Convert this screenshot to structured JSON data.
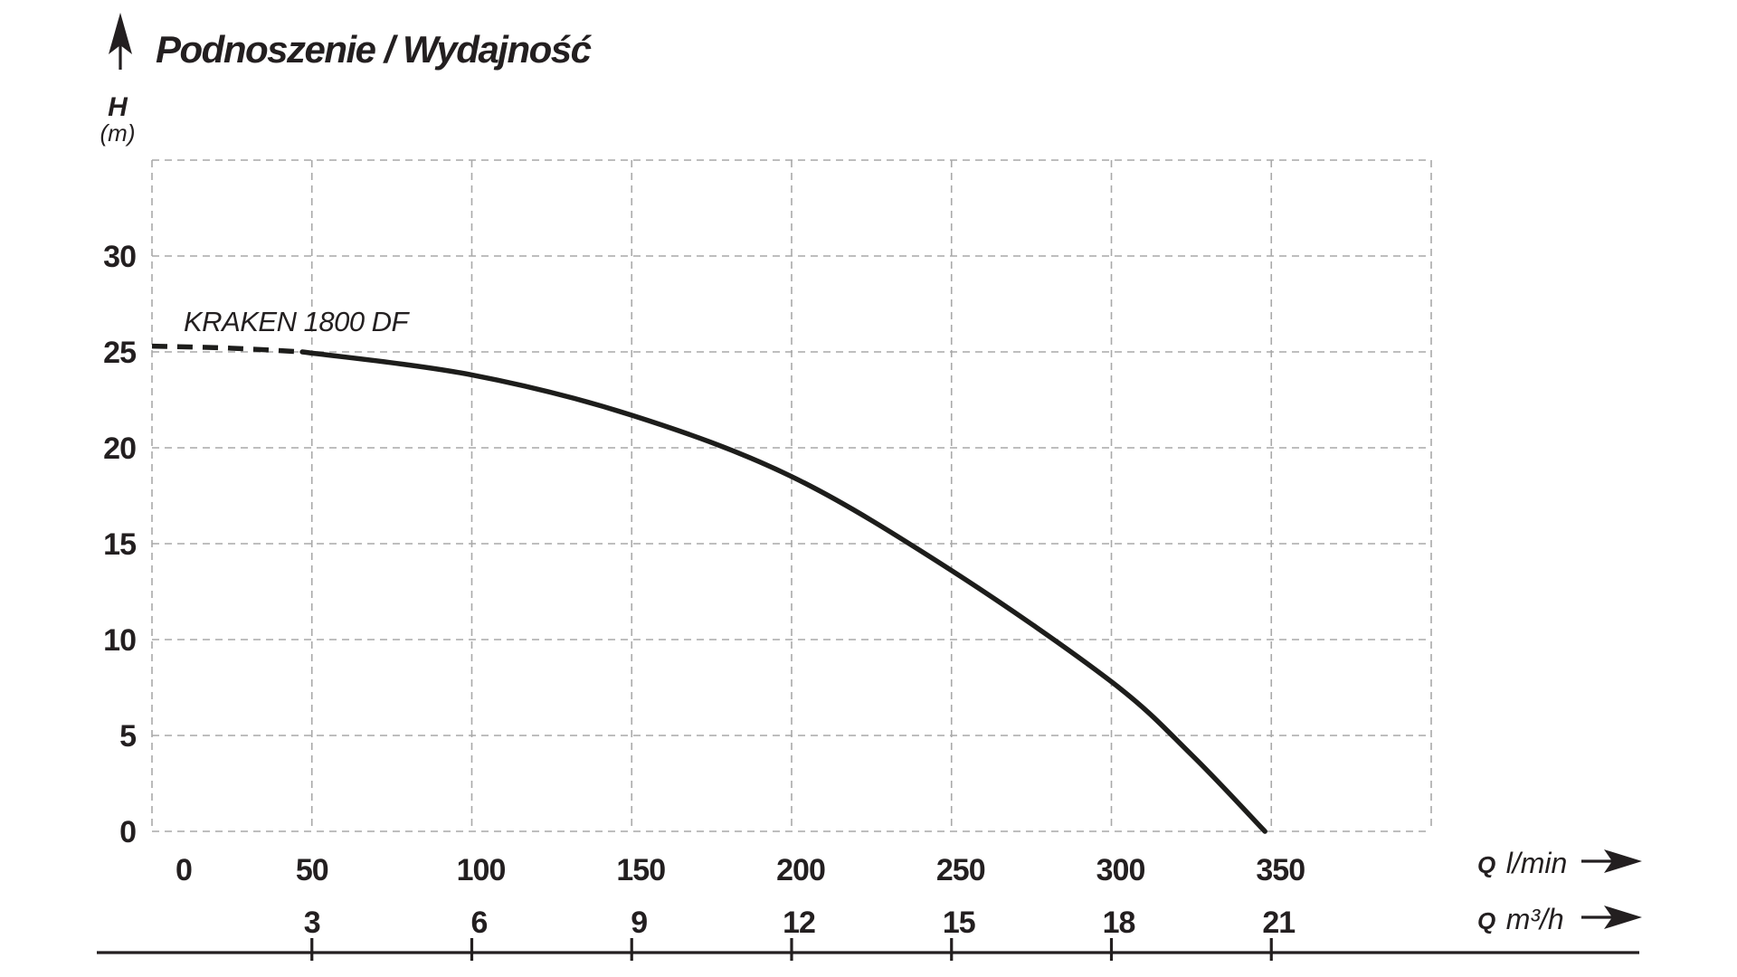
{
  "colors": {
    "ink": "#231f20",
    "grid": "#a9a9a9",
    "curve": "#1d1d1b",
    "background": "#ffffff"
  },
  "header": {
    "title": "Podnoszenie / Wydajność"
  },
  "y_axis": {
    "symbol": "H",
    "unit": "(m)"
  },
  "x_axis_primary": {
    "symbol": "Q",
    "unit": "l/min"
  },
  "x_axis_secondary": {
    "symbol": "Q",
    "unit": "m³/h"
  },
  "icons": {
    "up_arrow": "y-axis-direction-arrow",
    "right_arrow": "x-axis-direction-arrow"
  },
  "chart_data": {
    "type": "line",
    "title": "Podnoszenie / Wydajność",
    "xlabel": "Q l/min",
    "xlabel_secondary": "Q m³/h",
    "ylabel": "H (m)",
    "grid": true,
    "xlim": [
      0,
      400
    ],
    "ylim": [
      0,
      35
    ],
    "x_ticks_lmin": [
      0,
      50,
      100,
      150,
      200,
      250,
      300,
      350
    ],
    "x_ticks_m3h": [
      3,
      6,
      9,
      12,
      15,
      18,
      21
    ],
    "lmin_per_m3h": 16.6667,
    "y_ticks": [
      0,
      5,
      10,
      15,
      20,
      25,
      30
    ],
    "series": [
      {
        "name": "KRAKEN 1800 DF",
        "dashed_points": [
          [
            0,
            25.3
          ],
          [
            24,
            25.2
          ],
          [
            47,
            25.0
          ]
        ],
        "points": [
          [
            47,
            25.0
          ],
          [
            100,
            23.8
          ],
          [
            150,
            21.7
          ],
          [
            200,
            18.5
          ],
          [
            250,
            13.6
          ],
          [
            300,
            7.8
          ],
          [
            325,
            4.0
          ],
          [
            348,
            0
          ]
        ]
      }
    ]
  }
}
